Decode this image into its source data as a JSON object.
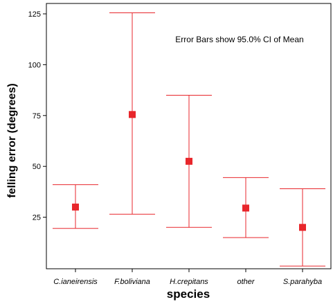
{
  "chart_data": {
    "type": "errorbar",
    "title": "",
    "annotation": "Error Bars show 95.0% CI of Mean",
    "xlabel": "species",
    "ylabel": "felling error (degrees)",
    "categories": [
      "C.ianeirensis",
      "F.boliviana",
      "H.crepitans",
      "other",
      "S.parahyba"
    ],
    "means": [
      30,
      75.5,
      52.5,
      29.5,
      20
    ],
    "ci_lower": [
      19.5,
      26.5,
      20,
      15,
      1
    ],
    "ci_upper": [
      41,
      125.5,
      85,
      44.5,
      39
    ],
    "yticks": [
      25,
      50,
      75,
      100,
      125
    ],
    "ylim": [
      0,
      130
    ],
    "grid": false,
    "colors": {
      "series": "#e8262b",
      "axis": "#000000"
    }
  }
}
